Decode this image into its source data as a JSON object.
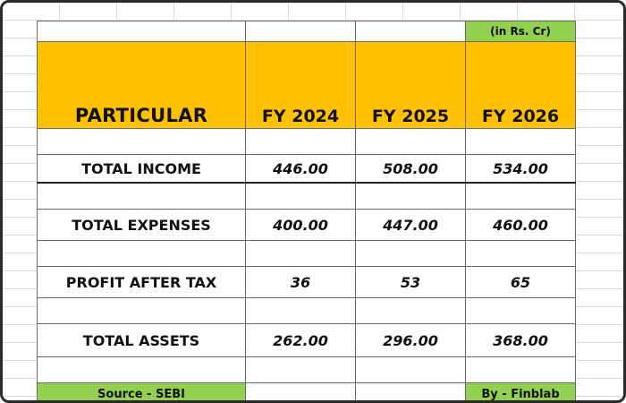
{
  "unit_note": "(in Rs. Cr)",
  "header": {
    "particular": "PARTICULAR",
    "years": [
      "FY 2024",
      "FY 2025",
      "FY 2026"
    ]
  },
  "rows": [
    {
      "label": "TOTAL INCOME",
      "values": [
        "446.00",
        "508.00",
        "534.00"
      ]
    },
    {
      "label": "TOTAL EXPENSES",
      "values": [
        "400.00",
        "447.00",
        "460.00"
      ]
    },
    {
      "label": "PROFIT AFTER TAX",
      "values": [
        "36",
        "53",
        "65"
      ]
    },
    {
      "label": "TOTAL ASSETS",
      "values": [
        "262.00",
        "296.00",
        "368.00"
      ]
    }
  ],
  "footer": {
    "source": "Source - SEBI",
    "by": "By - Finblab"
  },
  "colors": {
    "header_fill": "#ffc000",
    "note_fill": "#92d050",
    "footer_fill": "#92d050"
  }
}
